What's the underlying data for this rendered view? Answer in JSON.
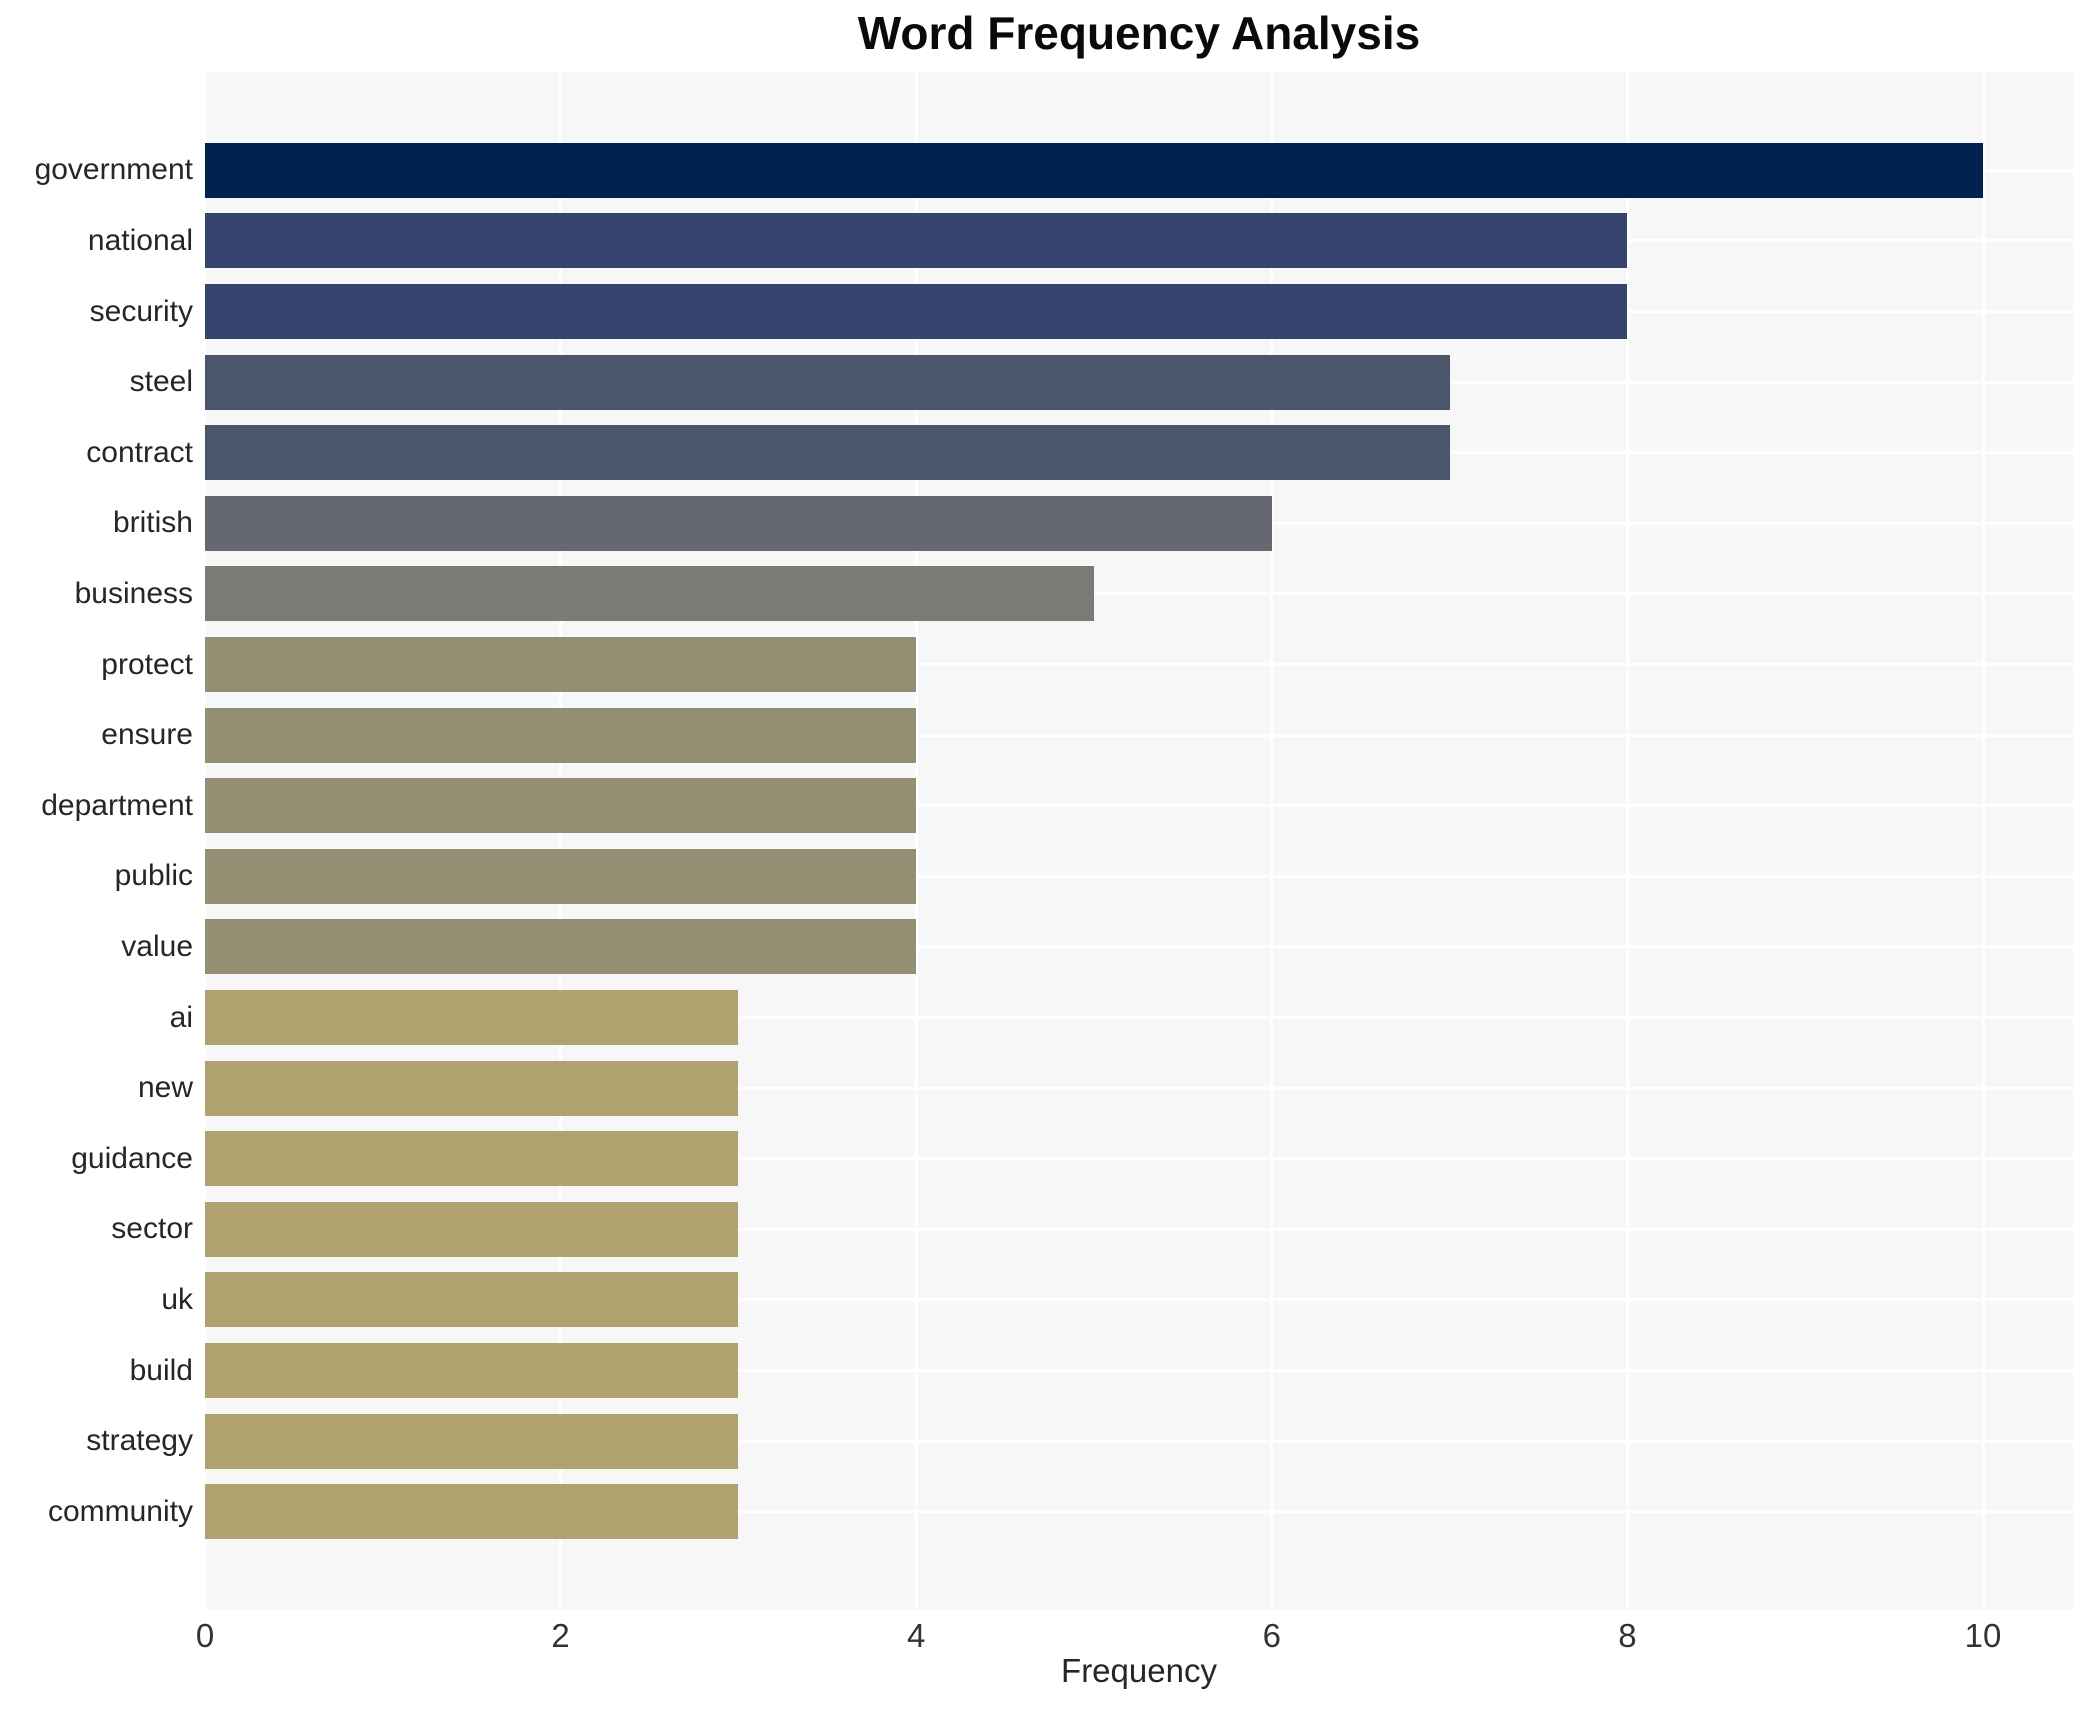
{
  "chart_data": {
    "type": "bar",
    "orientation": "horizontal",
    "title": "Word Frequency Analysis",
    "xlabel": "Frequency",
    "ylabel": "",
    "categories": [
      "government",
      "national",
      "security",
      "steel",
      "contract",
      "british",
      "business",
      "protect",
      "ensure",
      "department",
      "public",
      "value",
      "ai",
      "new",
      "guidance",
      "sector",
      "uk",
      "build",
      "strategy",
      "community"
    ],
    "values": [
      10,
      8,
      8,
      7,
      7,
      6,
      5,
      4,
      4,
      4,
      4,
      4,
      3,
      3,
      3,
      3,
      3,
      3,
      3,
      3
    ],
    "xlim": [
      0,
      10.5
    ],
    "xticks": [
      0,
      2,
      4,
      6,
      8,
      10
    ],
    "grid": true,
    "legend": false,
    "bar_colors_by_value": {
      "10": "#00224e",
      "8": "#36456d",
      "7": "#4c566b",
      "6": "#65696f",
      "5": "#7b7a74",
      "4": "#948e73",
      "3": "#afa26e"
    }
  },
  "style": {
    "plot_background": "#f7f7f7",
    "grid_color": "#ffffff",
    "text_color": "#262626",
    "title_color": "#0a0a0a"
  }
}
